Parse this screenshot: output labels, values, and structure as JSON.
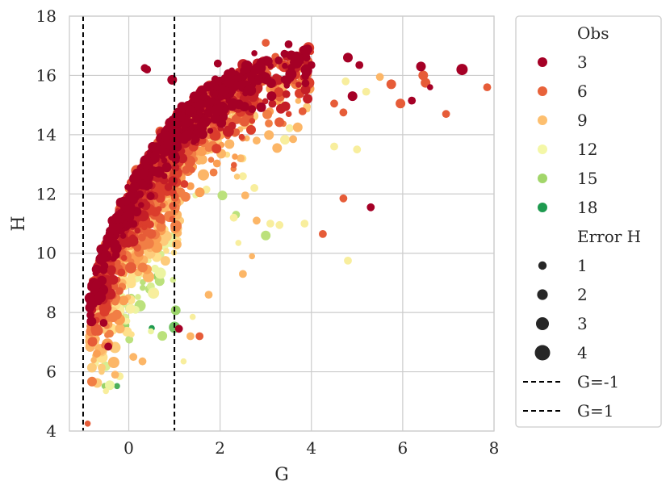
{
  "chart_data": {
    "type": "scatter",
    "xlabel": "G",
    "ylabel": "H",
    "xlim": [
      -1.3,
      8.0
    ],
    "ylim": [
      4,
      18
    ],
    "xticks": [
      "0",
      "2",
      "4",
      "6",
      "8"
    ],
    "yticks": [
      "4",
      "6",
      "8",
      "10",
      "12",
      "14",
      "16",
      "18"
    ],
    "grid": true,
    "legend_position": "outside-right",
    "legend": {
      "hue_title": "Obs",
      "hue_entries": [
        {
          "label": "3",
          "color": "#a50026"
        },
        {
          "label": "6",
          "color": "#e8623a"
        },
        {
          "label": "9",
          "color": "#fdbf6f"
        },
        {
          "label": "12",
          "color": "#f4f7a7"
        },
        {
          "label": "15",
          "color": "#a2d66a"
        },
        {
          "label": "18",
          "color": "#1e9a4f"
        }
      ],
      "size_title": "Error H",
      "size_entries": [
        "1",
        "2",
        "3",
        "4"
      ],
      "line_entries": [
        "G=-1",
        "G=1"
      ]
    },
    "vlines": [
      {
        "x": -1,
        "label": "G=-1"
      },
      {
        "x": 1,
        "label": "G=1"
      }
    ],
    "colormap": [
      "#a50026",
      "#d73027",
      "#e8623a",
      "#f99a4f",
      "#fdbf6f",
      "#fee08b",
      "#f4f7a7",
      "#d3ec8d",
      "#a2d66a",
      "#66bd63",
      "#1e9a4f"
    ],
    "points": [
      [
        -0.9,
        4.25,
        6,
        1
      ],
      [
        -0.55,
        7.65,
        3,
        2
      ],
      [
        -0.45,
        6.85,
        3,
        2
      ],
      [
        -0.5,
        5.35,
        12,
        1
      ],
      [
        -0.3,
        5.9,
        9,
        2
      ],
      [
        -0.2,
        5.85,
        12,
        2
      ],
      [
        0.1,
        6.5,
        9,
        2
      ],
      [
        0.3,
        6.35,
        9,
        2
      ],
      [
        1.2,
        6.35,
        12,
        1
      ],
      [
        1.35,
        7.2,
        9,
        2
      ],
      [
        1.55,
        7.2,
        6,
        2
      ],
      [
        1.1,
        7.45,
        3,
        2
      ],
      [
        1.4,
        7.85,
        12,
        1
      ],
      [
        1.75,
        8.6,
        9,
        2
      ],
      [
        2.5,
        9.3,
        9,
        2
      ],
      [
        2.7,
        9.9,
        9,
        1
      ],
      [
        2.4,
        10.35,
        12,
        1
      ],
      [
        3.0,
        10.6,
        15,
        3
      ],
      [
        4.25,
        10.65,
        6,
        2
      ],
      [
        4.8,
        9.75,
        12,
        2
      ],
      [
        3.85,
        11.0,
        12,
        2
      ],
      [
        3.3,
        10.95,
        12,
        2
      ],
      [
        2.8,
        11.1,
        9,
        2
      ],
      [
        4.7,
        11.85,
        6,
        2
      ],
      [
        5.3,
        11.55,
        3,
        2
      ],
      [
        2.35,
        11.3,
        15,
        2
      ],
      [
        2.3,
        11.2,
        12,
        2
      ],
      [
        2.55,
        11.95,
        9,
        2
      ],
      [
        2.75,
        12.2,
        12,
        2
      ],
      [
        2.05,
        11.95,
        15,
        3
      ],
      [
        1.7,
        12.15,
        12,
        2
      ],
      [
        2.5,
        12.6,
        12,
        2
      ],
      [
        4.5,
        13.6,
        12,
        2
      ],
      [
        5.0,
        13.5,
        12,
        2
      ],
      [
        3.6,
        13.85,
        9,
        2
      ],
      [
        3.25,
        13.55,
        9,
        3
      ],
      [
        2.45,
        13.2,
        9,
        2
      ],
      [
        2.8,
        13.8,
        9,
        2
      ],
      [
        3.7,
        14.25,
        9,
        3
      ],
      [
        4.7,
        14.75,
        6,
        2
      ],
      [
        4.5,
        15.05,
        6,
        2
      ],
      [
        4.9,
        15.3,
        3,
        3
      ],
      [
        5.2,
        15.45,
        12,
        2
      ],
      [
        5.5,
        15.95,
        9,
        2
      ],
      [
        5.75,
        15.7,
        6,
        3
      ],
      [
        6.5,
        15.75,
        6,
        3
      ],
      [
        6.45,
        16.0,
        6,
        3
      ],
      [
        6.4,
        16.3,
        3,
        3
      ],
      [
        7.3,
        16.2,
        3,
        4
      ],
      [
        7.85,
        15.6,
        6,
        2
      ],
      [
        6.95,
        14.7,
        6,
        2
      ],
      [
        5.95,
        15.05,
        6,
        3
      ],
      [
        6.2,
        15.15,
        3,
        2
      ],
      [
        6.6,
        15.6,
        3,
        1
      ],
      [
        5.05,
        16.35,
        3,
        2
      ],
      [
        4.8,
        16.6,
        3,
        3
      ],
      [
        4.0,
        16.35,
        3,
        2
      ],
      [
        3.5,
        17.05,
        3,
        2
      ],
      [
        3.0,
        17.1,
        6,
        2
      ],
      [
        2.75,
        16.75,
        3,
        1
      ],
      [
        1.95,
        16.4,
        3,
        2
      ],
      [
        0.35,
        16.25,
        3,
        2
      ],
      [
        0.4,
        16.2,
        3,
        2
      ],
      [
        0.95,
        15.85,
        3,
        3
      ],
      [
        4.75,
        15.8,
        12,
        2
      ],
      [
        3.1,
        11.0,
        12,
        2
      ]
    ]
  }
}
